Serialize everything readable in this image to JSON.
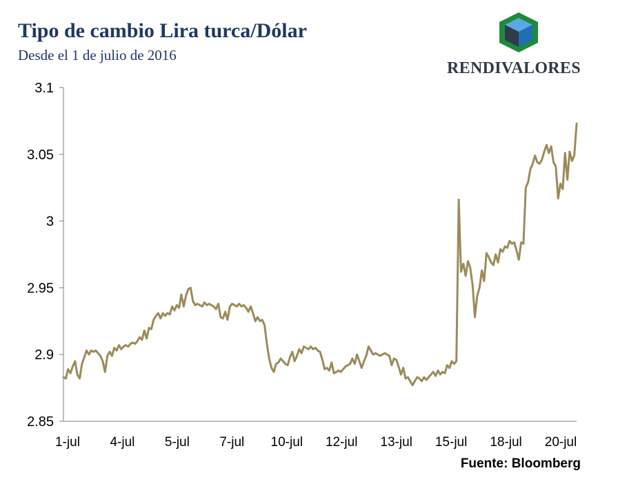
{
  "title": "Tipo de cambio Lira turca/Dólar",
  "subtitle": "Desde el 1 de julio de 2016",
  "logo_text": "RENDIVALORES",
  "source": "Fuente: Bloomberg",
  "colors": {
    "line": "#9b8b5a",
    "title": "#1f3864",
    "logo_green": "#1e8a3c",
    "logo_blue": "#1f6fb2",
    "logo_dark": "#2f3b4a"
  },
  "chart_data": {
    "type": "line",
    "title": "Tipo de cambio Lira turca/Dólar",
    "subtitle": "Desde el 1 de julio de 2016",
    "xlabel": "",
    "ylabel": "",
    "ylim": [
      2.85,
      3.1
    ],
    "yticks": [
      "2.85",
      "2.9",
      "2.95",
      "3",
      "3.05",
      "3.1"
    ],
    "ytick_values": [
      2.85,
      2.9,
      2.95,
      3.0,
      3.05,
      3.1
    ],
    "x_tick_labels": [
      "1-jul",
      "4-jul",
      "5-jul",
      "7-jul",
      "10-jul",
      "12-jul",
      "13-jul",
      "15-jul",
      "18-jul",
      "20-jul"
    ],
    "grid": false,
    "legend": "none",
    "series": [
      {
        "values": [
          2.883,
          2.882,
          2.889,
          2.886,
          2.891,
          2.895,
          2.885,
          2.882,
          2.893,
          2.898,
          2.903,
          2.9,
          2.903,
          2.902,
          2.903,
          2.901,
          2.899,
          2.895,
          2.887,
          2.899,
          2.902,
          2.899,
          2.905,
          2.903,
          2.907,
          2.904,
          2.906,
          2.907,
          2.906,
          2.908,
          2.909,
          2.908,
          2.91,
          2.913,
          2.911,
          2.918,
          2.912,
          2.92,
          2.919,
          2.926,
          2.929,
          2.931,
          2.927,
          2.931,
          2.929,
          2.931,
          2.93,
          2.936,
          2.933,
          2.937,
          2.935,
          2.945,
          2.936,
          2.944,
          2.949,
          2.95,
          2.94,
          2.937,
          2.938,
          2.937,
          2.936,
          2.939,
          2.937,
          2.938,
          2.937,
          2.936,
          2.934,
          2.938,
          2.928,
          2.927,
          2.932,
          2.926,
          2.936,
          2.938,
          2.937,
          2.936,
          2.938,
          2.936,
          2.937,
          2.935,
          2.932,
          2.936,
          2.931,
          2.925,
          2.928,
          2.925,
          2.926,
          2.922,
          2.908,
          2.897,
          2.89,
          2.887,
          2.893,
          2.894,
          2.897,
          2.895,
          2.893,
          2.892,
          2.898,
          2.902,
          2.895,
          2.899,
          2.904,
          2.901,
          2.906,
          2.905,
          2.904,
          2.906,
          2.904,
          2.905,
          2.903,
          2.902,
          2.896,
          2.889,
          2.89,
          2.888,
          2.894,
          2.886,
          2.887,
          2.888,
          2.887,
          2.889,
          2.891,
          2.892,
          2.893,
          2.897,
          2.893,
          2.9,
          2.895,
          2.89,
          2.895,
          2.899,
          2.906,
          2.903,
          2.9,
          2.901,
          2.9,
          2.899,
          2.9,
          2.901,
          2.9,
          2.899,
          2.892,
          2.897,
          2.896,
          2.891,
          2.885,
          2.89,
          2.882,
          2.883,
          2.88,
          2.877,
          2.88,
          2.883,
          2.882,
          2.88,
          2.883,
          2.881,
          2.883,
          2.885,
          2.887,
          2.884,
          2.888,
          2.885,
          2.887,
          2.886,
          2.892,
          2.89,
          2.895,
          2.893,
          2.895,
          3.016,
          2.962,
          2.968,
          2.959,
          2.97,
          2.965,
          2.952,
          2.928,
          2.944,
          2.95,
          2.963,
          2.955,
          2.976,
          2.973,
          2.969,
          2.967,
          2.975,
          2.969,
          2.979,
          2.977,
          2.981,
          2.98,
          2.985,
          2.983,
          2.984,
          2.978,
          2.971,
          2.984,
          2.983,
          3.025,
          3.029,
          3.039,
          3.043,
          3.049,
          3.044,
          3.043,
          3.046,
          3.052,
          3.057,
          3.051,
          3.056,
          3.044,
          3.041,
          3.017,
          3.028,
          3.024,
          3.051,
          3.031,
          3.052,
          3.045,
          3.049,
          3.073
        ]
      }
    ]
  }
}
